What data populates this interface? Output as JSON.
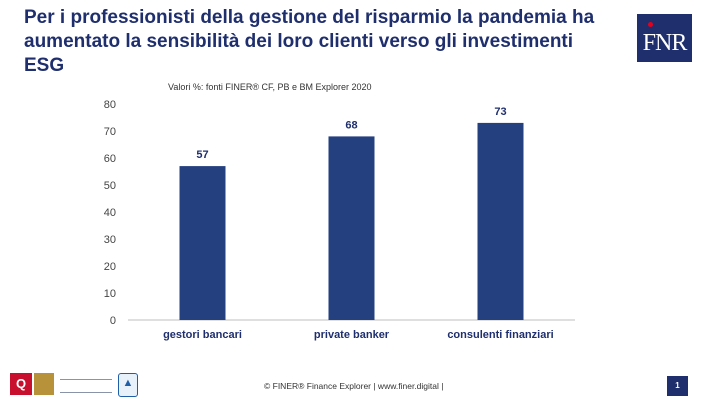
{
  "slide": {
    "title": "Per i professionisti della gestione del risparmio la pandemia ha aumentato la sensibilità dei loro clienti verso gli investimenti ESG",
    "subtitle": "Valori %: fonti FINER® CF, PB e  BM Explorer 2020",
    "logo_text": "FNR",
    "footer": "© FINER® Finance Explorer | www.finer.digital |",
    "page_number": "1"
  },
  "colors": {
    "bar": "#24407f",
    "title": "#1f2f6e",
    "accent": "#e3001b"
  },
  "chart_data": {
    "type": "bar",
    "categories": [
      "gestori bancari",
      "private banker",
      "consulenti finanziari"
    ],
    "values": [
      57,
      68,
      73
    ],
    "ylim": [
      0,
      80
    ],
    "yticks": [
      0,
      10,
      20,
      30,
      40,
      50,
      60,
      70,
      80
    ],
    "title": "",
    "xlabel": "",
    "ylabel": "",
    "grid": false,
    "legend": "none",
    "data_labels": true
  }
}
